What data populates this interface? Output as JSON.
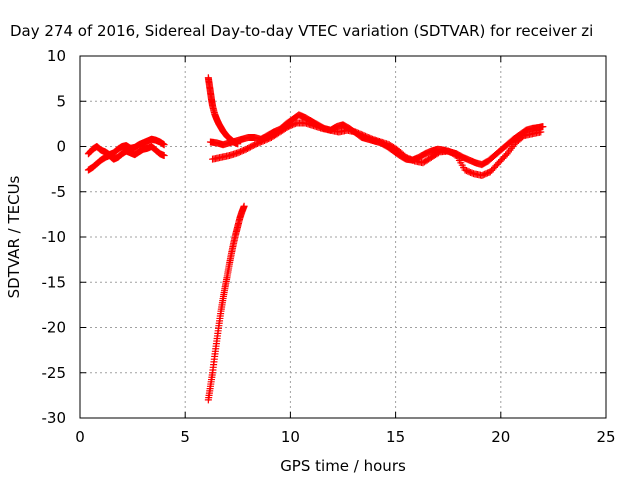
{
  "chart_data": {
    "type": "scatter",
    "title": "Day 274 of 2016, Sidereal Day-to-day VTEC variation (SDTVAR) for receiver zi",
    "xlabel": "GPS time / hours",
    "ylabel": "SDTVAR / TECUs",
    "xlim": [
      0,
      25
    ],
    "ylim": [
      -30,
      10
    ],
    "xticks": [
      0,
      5,
      10,
      15,
      20,
      25
    ],
    "yticks": [
      -30,
      -25,
      -20,
      -15,
      -10,
      -5,
      0,
      5,
      10
    ],
    "xtick_labels": [
      "0",
      "5",
      "10",
      "15",
      "20",
      "25"
    ],
    "ytick_labels": [
      "-30",
      "-25",
      "-20",
      "-15",
      "-10",
      "-5",
      "0",
      "5",
      "10"
    ],
    "grid": true,
    "marker": "+",
    "color": "#ff0000",
    "series": [
      {
        "x": [
          0.4,
          0.6,
          0.8,
          1.0,
          1.2,
          1.4,
          1.6,
          1.8,
          2.0,
          2.2,
          2.4,
          2.6,
          2.8,
          3.0,
          3.2,
          3.4,
          3.6,
          3.8,
          4.0
        ],
        "y": [
          -0.8,
          -0.3,
          0.0,
          -0.4,
          -0.6,
          -0.9,
          -0.7,
          -0.3,
          0.0,
          0.1,
          -0.2,
          -0.1,
          0.2,
          0.4,
          0.6,
          0.8,
          0.7,
          0.5,
          0.2
        ]
      },
      {
        "x": [
          0.4,
          0.6,
          0.8,
          1.0,
          1.2,
          1.4,
          1.6,
          1.8,
          2.0,
          2.2,
          2.4,
          2.6,
          2.8,
          3.0,
          3.2,
          3.4,
          3.6,
          3.8,
          4.0
        ],
        "y": [
          -2.6,
          -2.3,
          -1.9,
          -1.5,
          -1.2,
          -1.0,
          -1.4,
          -1.2,
          -0.8,
          -0.5,
          -0.7,
          -0.9,
          -0.6,
          -0.3,
          -0.2,
          0.0,
          -0.4,
          -0.8,
          -1.0
        ]
      },
      {
        "x": [
          6.1,
          6.15,
          6.2,
          6.25,
          6.3,
          6.4,
          6.5,
          6.6,
          6.7,
          6.8,
          6.9,
          7.0,
          7.1,
          7.2,
          7.3,
          7.4,
          7.5
        ],
        "y": [
          7.6,
          6.8,
          6.0,
          5.2,
          4.5,
          3.6,
          3.0,
          2.5,
          2.1,
          1.7,
          1.4,
          1.1,
          0.9,
          0.7,
          0.5,
          0.4,
          0.3
        ]
      },
      {
        "x": [
          6.2,
          6.5,
          6.8,
          7.1,
          7.4,
          7.7,
          8.0,
          8.3,
          8.6,
          8.9,
          9.2,
          9.5,
          9.8,
          10.1,
          10.4,
          10.7,
          11.0,
          11.3,
          11.6,
          11.9,
          12.2,
          12.5,
          12.8,
          13.1,
          13.4,
          13.7,
          14.0,
          14.3,
          14.6,
          14.9,
          15.2,
          15.5,
          15.8,
          16.1,
          16.4,
          16.7,
          17.0,
          17.3,
          17.6,
          17.9,
          18.2,
          18.5,
          18.8,
          19.1,
          19.4,
          19.7,
          20.0,
          20.3,
          20.6,
          20.9,
          21.2,
          21.5,
          21.8,
          22.0
        ],
        "y": [
          0.5,
          0.4,
          0.2,
          0.4,
          0.6,
          0.8,
          1.0,
          1.0,
          0.8,
          1.2,
          1.6,
          1.9,
          2.5,
          3.0,
          3.5,
          3.2,
          2.8,
          2.4,
          2.0,
          1.8,
          2.2,
          2.4,
          2.0,
          1.5,
          1.0,
          0.8,
          0.6,
          0.4,
          0.0,
          -0.5,
          -1.0,
          -1.4,
          -1.5,
          -1.2,
          -0.8,
          -0.5,
          -0.3,
          -0.4,
          -0.6,
          -0.8,
          -1.2,
          -1.5,
          -1.8,
          -2.0,
          -1.6,
          -1.0,
          -0.4,
          0.2,
          0.8,
          1.3,
          1.8,
          2.0,
          2.1,
          2.2
        ]
      },
      {
        "x": [
          6.3,
          6.7,
          7.1,
          7.5,
          7.9,
          8.3,
          8.7,
          9.1,
          9.5,
          9.9,
          10.3,
          10.7,
          11.1,
          11.5,
          11.9,
          12.3,
          12.7,
          13.1,
          13.5,
          13.9,
          14.3,
          14.7,
          15.1,
          15.5,
          15.9,
          16.3,
          16.7,
          17.1,
          17.5,
          17.9,
          18.3,
          18.7,
          19.1,
          19.5,
          19.9,
          20.3,
          20.7,
          21.1,
          21.5,
          21.9
        ],
        "y": [
          -1.4,
          -1.2,
          -1.0,
          -0.7,
          -0.3,
          0.2,
          0.6,
          1.0,
          1.6,
          2.2,
          2.6,
          2.6,
          2.3,
          2.0,
          1.8,
          1.6,
          1.8,
          1.6,
          1.2,
          0.8,
          0.5,
          0.2,
          -0.4,
          -1.2,
          -1.6,
          -1.8,
          -1.2,
          -0.6,
          -0.5,
          -1.0,
          -2.6,
          -3.0,
          -3.2,
          -2.8,
          -1.8,
          -0.8,
          0.4,
          1.2,
          1.4,
          1.6
        ]
      },
      {
        "x": [
          6.1,
          6.2,
          6.3,
          6.4,
          6.5,
          6.6,
          6.7,
          6.8,
          6.9,
          7.0,
          7.1,
          7.2,
          7.3,
          7.4,
          7.5,
          7.6,
          7.7,
          7.8
        ],
        "y": [
          -28.0,
          -26.5,
          -25.0,
          -23.2,
          -21.5,
          -19.8,
          -18.2,
          -16.8,
          -15.5,
          -14.3,
          -13.0,
          -11.8,
          -10.7,
          -9.7,
          -8.8,
          -7.9,
          -7.2,
          -6.6
        ]
      }
    ]
  }
}
